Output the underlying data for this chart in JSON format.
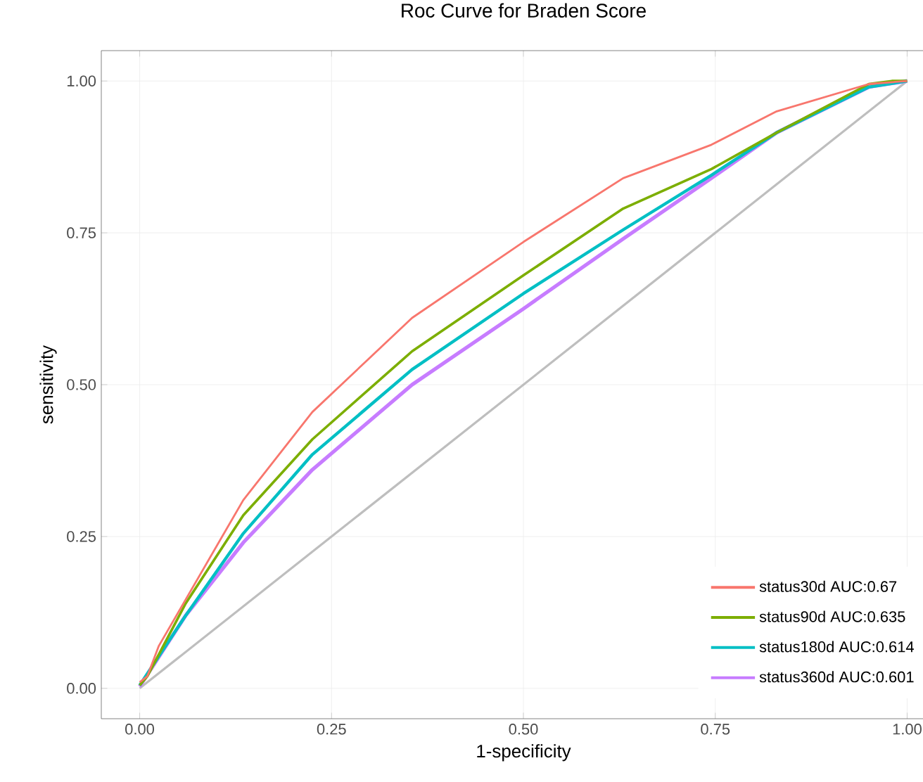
{
  "chart_data": {
    "type": "line",
    "title": "Roc Curve for Braden Score",
    "xlabel": "1-specificity",
    "ylabel": "sensitivity",
    "xlim": [
      -0.05,
      1.05
    ],
    "ylim": [
      -0.05,
      1.05
    ],
    "xticks": [
      {
        "value": 0,
        "label": "0.00"
      },
      {
        "value": 0.25,
        "label": "0.25"
      },
      {
        "value": 0.5,
        "label": "0.50"
      },
      {
        "value": 0.75,
        "label": "0.75"
      },
      {
        "value": 1,
        "label": "1.00"
      }
    ],
    "yticks": [
      {
        "value": 0,
        "label": "0.00"
      },
      {
        "value": 0.25,
        "label": "0.25"
      },
      {
        "value": 0.5,
        "label": "0.50"
      },
      {
        "value": 0.75,
        "label": "0.75"
      },
      {
        "value": 1,
        "label": "1.00"
      }
    ],
    "grid": true,
    "legend": "bottom right",
    "marker": "none",
    "line_style": "solid",
    "series": [
      {
        "color": "#bebebe",
        "x": [
          0,
          1
        ],
        "values": [
          0,
          1
        ]
      },
      {
        "name": "status360d AUC:0.601",
        "color": "#c77cff",
        "x": [
          0,
          0.06,
          0.135,
          0.225,
          0.355,
          0.5,
          0.63,
          0.745,
          0.83,
          0.95,
          1
        ],
        "values": [
          0.003,
          0.12,
          0.24,
          0.36,
          0.5,
          0.625,
          0.74,
          0.84,
          0.915,
          0.99,
          1
        ]
      },
      {
        "name": "status180d AUC:0.614",
        "color": "#00bfc4",
        "x": [
          0,
          0.06,
          0.135,
          0.225,
          0.355,
          0.5,
          0.63,
          0.745,
          0.83,
          0.95,
          1
        ],
        "values": [
          0.005,
          0.12,
          0.255,
          0.385,
          0.525,
          0.65,
          0.755,
          0.845,
          0.915,
          0.99,
          1
        ]
      },
      {
        "name": "status90d AUC:0.635",
        "color": "#7cae00",
        "x": [
          0,
          0.01,
          0.06,
          0.135,
          0.225,
          0.355,
          0.5,
          0.63,
          0.745,
          0.83,
          0.95,
          0.98,
          1
        ],
        "values": [
          0.005,
          0.02,
          0.14,
          0.285,
          0.41,
          0.555,
          0.68,
          0.79,
          0.855,
          0.915,
          0.995,
          1,
          1
        ]
      },
      {
        "name": "status30d AUC:0.67",
        "color": "#f8766d",
        "x": [
          0,
          0.01,
          0.025,
          0.135,
          0.225,
          0.355,
          0.5,
          0.63,
          0.745,
          0.83,
          0.95,
          1
        ],
        "values": [
          0.01,
          0.02,
          0.07,
          0.31,
          0.455,
          0.61,
          0.735,
          0.84,
          0.895,
          0.95,
          0.995,
          1
        ]
      }
    ]
  }
}
